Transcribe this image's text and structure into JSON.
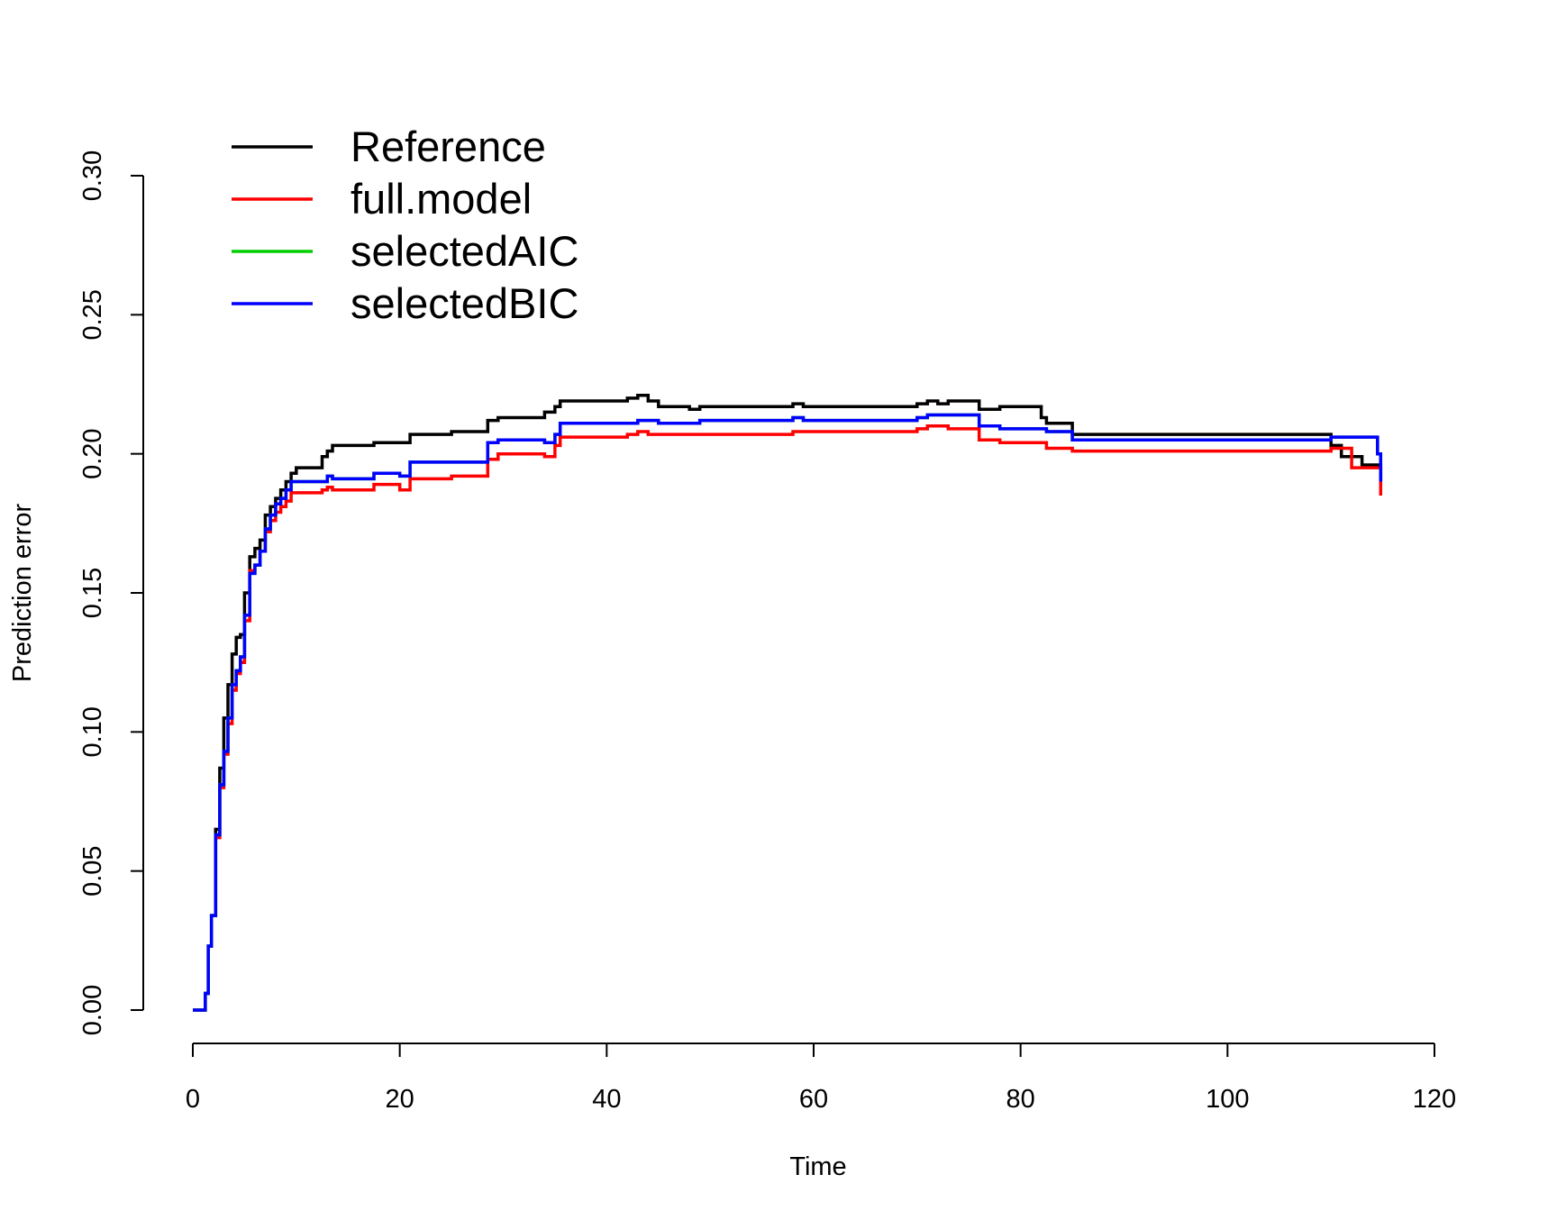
{
  "chart_data": {
    "type": "line",
    "step": true,
    "xlabel": "Time",
    "ylabel": "Prediction error",
    "xlim": [
      0,
      120
    ],
    "ylim": [
      0,
      0.3
    ],
    "x_ticks": [
      0,
      20,
      40,
      60,
      80,
      100,
      120
    ],
    "x_tick_labels": [
      "0",
      "20",
      "40",
      "60",
      "80",
      "100",
      "120"
    ],
    "y_ticks": [
      0,
      0.05,
      0.1,
      0.15,
      0.2,
      0.25,
      0.3
    ],
    "y_tick_labels": [
      "0.00",
      "0.05",
      "0.10",
      "0.15",
      "0.20",
      "0.25",
      "0.30"
    ],
    "grid": false,
    "legend_position": "top-left",
    "legend": [
      "Reference",
      "full.model",
      "selectedAIC",
      "selectedBIC"
    ],
    "series": [
      {
        "name": "Reference",
        "color": "#000000",
        "x": [
          0,
          1.2,
          1.5,
          1.8,
          2.2,
          2.6,
          3.0,
          3.4,
          3.8,
          4.2,
          4.6,
          5.0,
          5.5,
          6.0,
          6.5,
          7.0,
          7.5,
          8.0,
          8.5,
          9.0,
          9.5,
          10.0,
          11.0,
          12.5,
          13.0,
          13.5,
          17.0,
          17.5,
          21.0,
          25.0,
          28.5,
          29.5,
          30.5,
          34.0,
          35.0,
          35.5,
          42.0,
          43.0,
          44.0,
          45.0,
          48.0,
          49.0,
          56.0,
          58.0,
          59.0,
          69.0,
          70.0,
          71.0,
          72.0,
          73.0,
          76.0,
          77.0,
          78.0,
          82.0,
          82.5,
          83.0,
          85.0,
          106.0,
          110.0,
          111.0,
          113.0,
          114.5,
          114.8
        ],
        "y": [
          0,
          0.006,
          0.023,
          0.034,
          0.065,
          0.087,
          0.105,
          0.117,
          0.128,
          0.134,
          0.135,
          0.15,
          0.163,
          0.166,
          0.169,
          0.178,
          0.181,
          0.184,
          0.187,
          0.19,
          0.193,
          0.195,
          0.195,
          0.199,
          0.201,
          0.203,
          0.203,
          0.204,
          0.207,
          0.208,
          0.212,
          0.213,
          0.213,
          0.215,
          0.217,
          0.219,
          0.22,
          0.221,
          0.219,
          0.217,
          0.216,
          0.217,
          0.217,
          0.218,
          0.217,
          0.217,
          0.218,
          0.219,
          0.218,
          0.219,
          0.216,
          0.216,
          0.217,
          0.213,
          0.211,
          0.211,
          0.207,
          0.207,
          0.203,
          0.199,
          0.196,
          0.196,
          0.19
        ]
      },
      {
        "name": "full.model",
        "color": "#ff0000",
        "x": [
          0,
          1.2,
          1.5,
          1.8,
          2.2,
          2.6,
          3.0,
          3.4,
          3.8,
          4.2,
          4.6,
          5.0,
          5.5,
          6.0,
          6.5,
          7.0,
          7.5,
          8.0,
          8.5,
          9.0,
          9.5,
          10.0,
          12.5,
          13.0,
          13.5,
          17.0,
          17.5,
          20.0,
          21.0,
          25.0,
          28.5,
          29.5,
          31.0,
          34.0,
          35.0,
          35.5,
          42.0,
          43.0,
          44.0,
          45.0,
          48.0,
          49.0,
          56.0,
          58.0,
          59.0,
          69.0,
          70.0,
          71.0,
          72.0,
          73.0,
          76.0,
          77.0,
          78.0,
          82.0,
          82.5,
          85.0,
          106.0,
          110.0,
          112.0,
          114.5,
          114.8
        ],
        "y": [
          0,
          0.006,
          0.023,
          0.034,
          0.062,
          0.08,
          0.092,
          0.103,
          0.115,
          0.121,
          0.125,
          0.14,
          0.158,
          0.16,
          0.165,
          0.172,
          0.176,
          0.179,
          0.181,
          0.183,
          0.186,
          0.186,
          0.187,
          0.188,
          0.187,
          0.187,
          0.189,
          0.187,
          0.191,
          0.192,
          0.198,
          0.2,
          0.2,
          0.199,
          0.203,
          0.206,
          0.207,
          0.208,
          0.207,
          0.207,
          0.207,
          0.207,
          0.207,
          0.208,
          0.208,
          0.208,
          0.209,
          0.21,
          0.21,
          0.209,
          0.205,
          0.205,
          0.204,
          0.204,
          0.202,
          0.201,
          0.201,
          0.202,
          0.195,
          0.195,
          0.185
        ]
      },
      {
        "name": "selectedAIC",
        "color": "#00cd00",
        "x": [
          0,
          1.2,
          1.5,
          1.8,
          2.2,
          2.6,
          3.0,
          3.4,
          3.8,
          4.2,
          4.6,
          5.0,
          5.5,
          6.0,
          6.5,
          7.0,
          7.5,
          8.0,
          8.5,
          9.0,
          9.5,
          10.0,
          12.5,
          13.0,
          13.5,
          17.0,
          17.5,
          20.0,
          21.0,
          25.0,
          28.5,
          29.5,
          31.0,
          34.0,
          35.0,
          35.5,
          42.0,
          43.0,
          44.0,
          45.0,
          48.0,
          49.0,
          56.0,
          58.0,
          59.0,
          69.0,
          70.0,
          71.0,
          72.0,
          73.0,
          76.0,
          77.0,
          78.0,
          82.0,
          82.5,
          85.0,
          106.0,
          110.0,
          112.0,
          114.5,
          114.8
        ],
        "y": [
          0,
          0.006,
          0.023,
          0.034,
          0.063,
          0.081,
          0.093,
          0.105,
          0.117,
          0.122,
          0.127,
          0.142,
          0.157,
          0.16,
          0.165,
          0.173,
          0.178,
          0.182,
          0.184,
          0.187,
          0.19,
          0.19,
          0.19,
          0.192,
          0.191,
          0.191,
          0.193,
          0.192,
          0.197,
          0.197,
          0.204,
          0.205,
          0.205,
          0.204,
          0.207,
          0.211,
          0.211,
          0.212,
          0.212,
          0.211,
          0.211,
          0.212,
          0.212,
          0.213,
          0.212,
          0.212,
          0.213,
          0.214,
          0.214,
          0.214,
          0.21,
          0.21,
          0.209,
          0.209,
          0.208,
          0.205,
          0.205,
          0.206,
          0.206,
          0.2,
          0.19
        ]
      },
      {
        "name": "selectedBIC",
        "color": "#0000ff",
        "x": [
          0,
          1.2,
          1.5,
          1.8,
          2.2,
          2.6,
          3.0,
          3.4,
          3.8,
          4.2,
          4.6,
          5.0,
          5.5,
          6.0,
          6.5,
          7.0,
          7.5,
          8.0,
          8.5,
          9.0,
          9.5,
          10.0,
          12.5,
          13.0,
          13.5,
          17.0,
          17.5,
          20.0,
          21.0,
          25.0,
          28.5,
          29.5,
          31.0,
          34.0,
          35.0,
          35.5,
          42.0,
          43.0,
          44.0,
          45.0,
          48.0,
          49.0,
          56.0,
          58.0,
          59.0,
          69.0,
          70.0,
          71.0,
          72.0,
          73.0,
          76.0,
          77.0,
          78.0,
          82.0,
          82.5,
          85.0,
          106.0,
          110.0,
          112.0,
          114.5,
          114.8
        ],
        "y": [
          0,
          0.006,
          0.023,
          0.034,
          0.063,
          0.081,
          0.093,
          0.105,
          0.117,
          0.122,
          0.127,
          0.142,
          0.157,
          0.16,
          0.165,
          0.173,
          0.178,
          0.182,
          0.184,
          0.187,
          0.19,
          0.19,
          0.19,
          0.192,
          0.191,
          0.191,
          0.193,
          0.192,
          0.197,
          0.197,
          0.204,
          0.205,
          0.205,
          0.204,
          0.207,
          0.211,
          0.211,
          0.212,
          0.212,
          0.211,
          0.211,
          0.212,
          0.212,
          0.213,
          0.212,
          0.212,
          0.213,
          0.214,
          0.214,
          0.214,
          0.21,
          0.21,
          0.209,
          0.209,
          0.208,
          0.205,
          0.205,
          0.206,
          0.206,
          0.2,
          0.19
        ]
      }
    ]
  }
}
